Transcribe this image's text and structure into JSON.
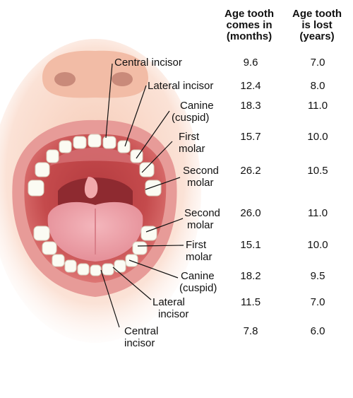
{
  "headers": {
    "comes_in": [
      "Age tooth",
      "comes in",
      "(months)"
    ],
    "lost": [
      "Age tooth",
      "is lost",
      "(years)"
    ]
  },
  "upper": [
    {
      "label": [
        "Central incisor"
      ],
      "comes_in": "9.6",
      "lost": "7.0"
    },
    {
      "label": [
        "Lateral incisor"
      ],
      "comes_in": "12.4",
      "lost": "8.0"
    },
    {
      "label": [
        "Canine",
        "(cuspid)"
      ],
      "comes_in": "18.3",
      "lost": "11.0"
    },
    {
      "label": [
        "First",
        "molar"
      ],
      "comes_in": "15.7",
      "lost": "10.0"
    },
    {
      "label": [
        "Second",
        "molar"
      ],
      "comes_in": "26.2",
      "lost": "10.5"
    }
  ],
  "lower": [
    {
      "label": [
        "Second",
        "molar"
      ],
      "comes_in": "26.0",
      "lost": "11.0"
    },
    {
      "label": [
        "First",
        "molar"
      ],
      "comes_in": "15.1",
      "lost": "10.0"
    },
    {
      "label": [
        "Canine",
        "(cuspid)"
      ],
      "comes_in": "18.2",
      "lost": "9.5"
    },
    {
      "label": [
        "Lateral",
        "incisor"
      ],
      "comes_in": "11.5",
      "lost": "7.0"
    },
    {
      "label": [
        "Central",
        "incisor"
      ],
      "comes_in": "7.8",
      "lost": "6.0"
    }
  ]
}
